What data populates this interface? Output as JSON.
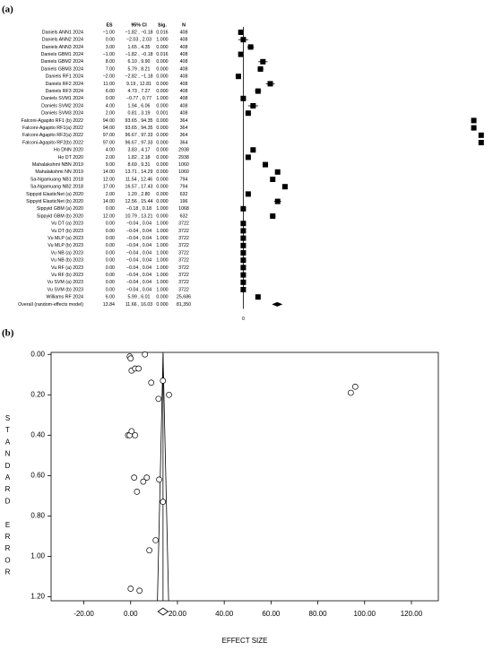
{
  "chart_data": [
    {
      "type": "forest",
      "panel_label": "(a)",
      "headers": {
        "es": "ES",
        "ci": "95% CI",
        "sig": "Sig.",
        "n": "N"
      },
      "categories": [
        "Daniels ANN1 2024",
        "Daniels ANN2 2024",
        "Daniels ANN3 2024",
        "Daniels GBM1 2024",
        "Daniels GBM2 2024",
        "Daniels GBM3 2024",
        "Daniels RF1 2024",
        "Daniels RF2 2024",
        "Daniels RF3 2024",
        "Daniels SVM1 2024",
        "Daniels SVM2 2024",
        "Daniels SVM3 2024",
        "Falconi-Agapito RF1 (b) 2022",
        "Falconi-Agapito RF1(a) 2022",
        "Falconi-Agapito RF2(a) 2022",
        "Falconi-Agapito RF2(b) 2022",
        "Ho DNN 2020",
        "Ho DT 2020",
        "Mahalakshmi NBN 2019",
        "Mahalakshmi NN 2019",
        "Sa-Ngamuang NB1 2018",
        "Sa-Ngamuang NB2 2018",
        "Sippyid ElasticNet (a) 2020",
        "Sippyid ElasticNet (b) 2020",
        "Sippyid GBM (a) 2020",
        "Sippyid GBM (b) 2020",
        "Vu DT (a) 2023",
        "Vu DT (b) 2023",
        "Vu MLP (a) 2023",
        "Vu MLP (b) 2023",
        "Vu NB (a) 2023",
        "Vu NB (b) 2023",
        "Vu RF (a) 2023",
        "Vu RF (b) 2023",
        "Vu SVM (a) 2023",
        "Vu SVM (b) 2023",
        "Williams RF 2024"
      ],
      "values": [
        -1,
        0,
        3,
        -1,
        8,
        7,
        -2,
        11,
        6,
        0,
        4,
        2,
        94,
        94,
        97,
        97,
        4,
        2,
        9,
        14,
        12,
        17,
        2,
        14,
        0,
        12,
        0,
        0,
        0,
        0,
        0,
        0,
        0,
        0,
        0,
        0,
        6
      ],
      "value_labels": [
        "−1.00",
        "0.00",
        "3.00",
        "−1.00",
        "8.00",
        "7.00",
        "−2.00",
        "11.00",
        "6.00",
        "0.00",
        "4.00",
        "2.00",
        "94.00",
        "94.00",
        "97.00",
        "97.00",
        "4.00",
        "2.00",
        "9.00",
        "14.00",
        "12.00",
        "17.00",
        "2.00",
        "14.00",
        "0.00",
        "12.00",
        "0.00",
        "0.00",
        "0.00",
        "0.00",
        "0.00",
        "0.00",
        "0.00",
        "0.00",
        "0.00",
        "0.00",
        "6.00"
      ],
      "ci_low": [
        -1.82,
        -2.03,
        1.65,
        -1.82,
        6.1,
        5.79,
        -2.82,
        9.19,
        4.73,
        -0.77,
        1.94,
        0.81,
        93.65,
        93.65,
        96.67,
        96.67,
        3.83,
        1.82,
        8.69,
        13.71,
        11.54,
        16.57,
        1.2,
        12.56,
        -0.18,
        10.79,
        -0.04,
        -0.04,
        -0.04,
        -0.04,
        -0.04,
        -0.04,
        -0.04,
        -0.04,
        -0.04,
        -0.04,
        5.99
      ],
      "ci_high": [
        -0.18,
        2.03,
        4.35,
        -0.18,
        9.9,
        8.21,
        -1.18,
        12.81,
        7.27,
        0.77,
        6.06,
        3.19,
        94.35,
        94.35,
        97.33,
        97.33,
        4.17,
        2.18,
        9.31,
        14.29,
        12.46,
        17.43,
        2.8,
        15.44,
        0.18,
        13.21,
        0.04,
        0.04,
        0.04,
        0.04,
        0.04,
        0.04,
        0.04,
        0.04,
        0.04,
        0.04,
        6.01
      ],
      "ci_labels": [
        "−1.82 , −0.18",
        "−2.03 , 2.03",
        "1.65 , 4.35",
        "−1.82 , −0.18",
        "6.10 , 9.90",
        "5.79 , 8.21",
        "−2.82 , −1.18",
        "9.19 , 12.81",
        "4.73 , 7.27",
        "−0.77 , 0.77",
        "1.94 , 6.06",
        "0.81 , 3.19",
        "93.65 , 94.35",
        "93.65 , 94.35",
        "96.67 , 97.33",
        "96.67 , 97.33",
        "3.83 , 4.17",
        "1.82 , 2.18",
        "8.69 , 9.31",
        "13.71 , 14.29",
        "11.54 , 12.46",
        "16.57 , 17.43",
        "1.20 , 2.80",
        "12.56 , 15.44",
        "−0.18 , 0.18",
        "10.79 , 13.21",
        "−0.04 , 0.04",
        "−0.04 , 0.04",
        "−0.04 , 0.04",
        "−0.04 , 0.04",
        "−0.04 , 0.04",
        "−0.04 , 0.04",
        "−0.04 , 0.04",
        "−0.04 , 0.04",
        "−0.04 , 0.04",
        "−0.04 , 0.04",
        "5.99 , 6.01"
      ],
      "sig": [
        "0.016",
        "1.000",
        "0.000",
        "0.016",
        "0.000",
        "0.000",
        "0.000",
        "0.000",
        "0.000",
        "1.000",
        "0.000",
        "0.001",
        "0.000",
        "0.000",
        "0.000",
        "0.000",
        "0.000",
        "0.000",
        "0.000",
        "0.000",
        "0.000",
        "0.000",
        "0.000",
        "0.000",
        "1.000",
        "0.000",
        "1.000",
        "1.000",
        "1.000",
        "1.000",
        "1.000",
        "1.000",
        "1.000",
        "1.000",
        "1.000",
        "1.000",
        "0.000"
      ],
      "n": [
        "408",
        "408",
        "408",
        "408",
        "408",
        "408",
        "408",
        "408",
        "408",
        "408",
        "408",
        "408",
        "364",
        "364",
        "364",
        "364",
        "2938",
        "2938",
        "1060",
        "1060",
        "794",
        "794",
        "632",
        "196",
        "1068",
        "632",
        "3722",
        "3722",
        "3722",
        "3722",
        "3722",
        "3722",
        "3722",
        "3722",
        "3722",
        "3722",
        "25,686"
      ],
      "overall": {
        "name": "Overall (random-effects model)",
        "value": 13.84,
        "value_label": "13.84",
        "ci_low": 11.66,
        "ci_high": 16.03,
        "ci_label": "11.66 , 16.03",
        "sig": "0.000",
        "n": "81,350"
      },
      "xlim": [
        -6,
        100
      ],
      "xticks": [
        0
      ],
      "color": "#000000"
    },
    {
      "type": "scatter",
      "panel_label": "(b)",
      "x_label": "EFFECT SIZE",
      "y_label": "STANDARD ERROR",
      "x": [
        -0.4,
        0,
        6.1,
        0.4,
        1.9,
        3.4,
        8.8,
        11.9,
        16.4,
        13.8,
        94.1,
        96,
        -1.1,
        -0.4,
        0.4,
        1.9,
        1.5,
        6.9,
        5.4,
        2.7,
        12.2,
        13.8,
        10.7,
        8.0,
        0,
        3.8
      ],
      "y": [
        0.01,
        0.02,
        0,
        0.08,
        0.07,
        0.07,
        0.14,
        0.22,
        0.2,
        0.13,
        0.19,
        0.16,
        0.4,
        0.4,
        0.38,
        0.4,
        0.61,
        0.61,
        0.63,
        0.68,
        0.62,
        0.73,
        0.92,
        0.97,
        1.16,
        1.17
      ],
      "xlim": [
        -34,
        131.5
      ],
      "ylim": [
        -0.01,
        1.22
      ],
      "y_inverted": true,
      "xticks": [
        {
          "value": -20,
          "label": "-20.00"
        },
        {
          "value": 0,
          "label": "0.00"
        },
        {
          "value": 20,
          "label": "20.00"
        },
        {
          "value": 40,
          "label": "40.00"
        },
        {
          "value": 60,
          "label": "60.00"
        },
        {
          "value": 80,
          "label": "80.00"
        },
        {
          "value": 100,
          "label": "100.00"
        },
        {
          "value": 120,
          "label": "120.00"
        }
      ],
      "yticks": [
        {
          "value": 0,
          "label": "0.00"
        },
        {
          "value": 0.2,
          "label": "0.20"
        },
        {
          "value": 0.4,
          "label": "0.40"
        },
        {
          "value": 0.6,
          "label": "0.60"
        },
        {
          "value": 0.8,
          "label": "0.80"
        },
        {
          "value": 1,
          "label": "1.00"
        },
        {
          "value": 1.2,
          "label": "1.20"
        }
      ]
    }
  ]
}
